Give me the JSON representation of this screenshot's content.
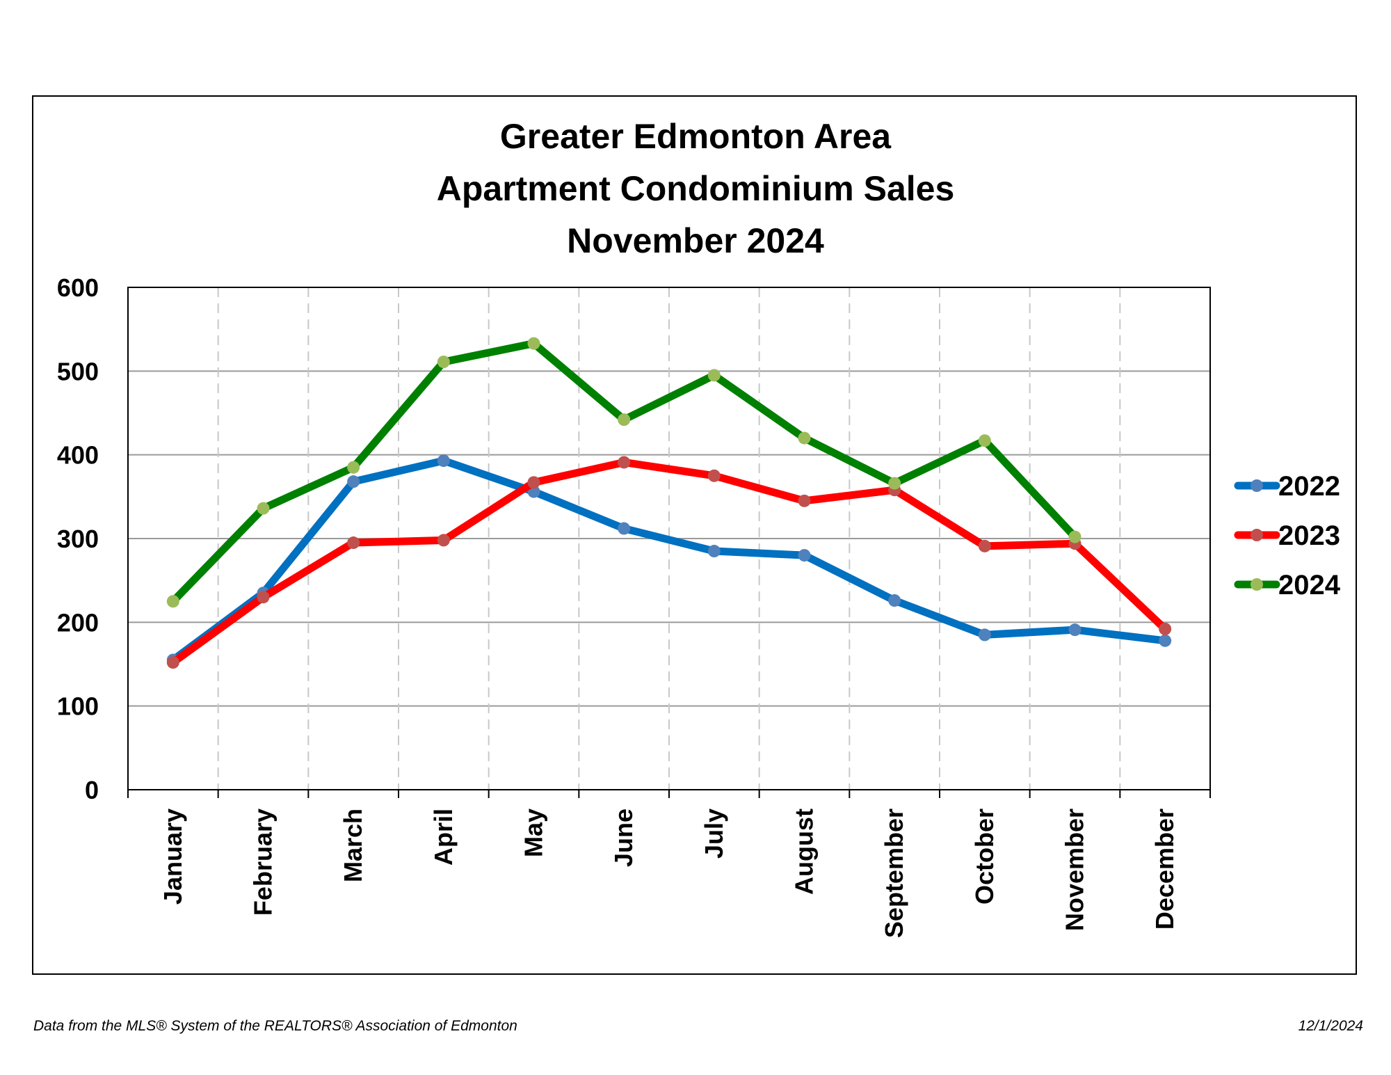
{
  "chart_data": {
    "type": "line",
    "title": [
      "Greater Edmonton Area",
      "Apartment Condominium Sales",
      "November 2024"
    ],
    "categories": [
      "January",
      "February",
      "March",
      "April",
      "May",
      "June",
      "July",
      "August",
      "September",
      "October",
      "November",
      "December"
    ],
    "yticks": [
      "0",
      "100",
      "200",
      "300",
      "400",
      "500",
      "600"
    ],
    "ylim": [
      0,
      600
    ],
    "grid": {
      "horizontal": "solid",
      "vertical": "dashed"
    },
    "legend_position": "right",
    "series": [
      {
        "name": "2022",
        "color": "#0070C0",
        "marker_color": "#4F81BD",
        "values": [
          155,
          235,
          368,
          393,
          356,
          312,
          285,
          280,
          226,
          185,
          191,
          178
        ]
      },
      {
        "name": "2023",
        "color": "#FF0000",
        "marker_color": "#C0504D",
        "values": [
          152,
          230,
          295,
          298,
          367,
          391,
          375,
          345,
          358,
          291,
          294,
          192
        ]
      },
      {
        "name": "2024",
        "color": "#008000",
        "marker_color": "#9BBB59",
        "values": [
          225,
          336,
          385,
          511,
          533,
          442,
          495,
          420,
          366,
          417,
          302,
          null
        ]
      }
    ]
  },
  "footer": {
    "source": "Data from the MLS® System of the REALTORS® Association of Edmonton",
    "date": "12/1/2024"
  }
}
